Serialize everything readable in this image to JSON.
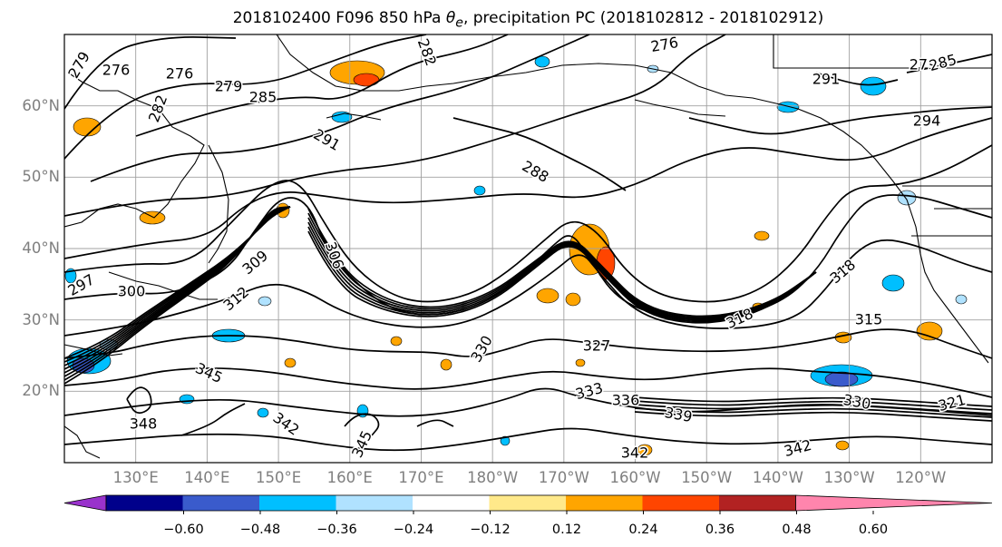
{
  "title": {
    "prefix": "2018102400 F096 850 hPa ",
    "symbol": "θ",
    "subscript": "e",
    "suffix": ", precipitation PC (2018102812 - 2018102912)"
  },
  "map": {
    "lat_labels": [
      "60°N",
      "50°N",
      "40°N",
      "30°N",
      "20°N"
    ],
    "lat_values": [
      60,
      50,
      40,
      30,
      20
    ],
    "lon_labels": [
      "130°E",
      "140°E",
      "150°E",
      "160°E",
      "170°E",
      "180°W",
      "170°W",
      "160°W",
      "150°W",
      "140°W",
      "130°W",
      "120°W"
    ],
    "lon_values": [
      130,
      140,
      150,
      160,
      170,
      180,
      190,
      200,
      210,
      220,
      230,
      240
    ],
    "lon_range": [
      120,
      250
    ],
    "lat_range": [
      10,
      70
    ],
    "grid": true,
    "contour_labels": [
      "276",
      "276",
      "279",
      "279",
      "282",
      "282",
      "276",
      "279",
      "285",
      "288",
      "291",
      "291",
      "294",
      "297",
      "300",
      "306",
      "309",
      "312",
      "315",
      "318",
      "318",
      "327",
      "330",
      "330",
      "333",
      "336",
      "339",
      "342",
      "342",
      "342",
      "345",
      "345",
      "348",
      "321",
      "285"
    ]
  },
  "colorbar": {
    "ticks": [
      "−0.60",
      "−0.48",
      "−0.36",
      "−0.24",
      "−0.12",
      "0.12",
      "0.24",
      "0.36",
      "0.48",
      "0.60"
    ],
    "tick_values": [
      -0.6,
      -0.48,
      -0.36,
      -0.24,
      -0.12,
      0.12,
      0.24,
      0.36,
      0.48,
      0.6
    ],
    "colors": [
      "#9932cc",
      "#00008b",
      "#3a5bcc",
      "#00bfff",
      "#b0e2ff",
      "#ffffff",
      "#ffe98a",
      "#ffa500",
      "#ff4500",
      "#b22222",
      "#ff85ad"
    ]
  }
}
